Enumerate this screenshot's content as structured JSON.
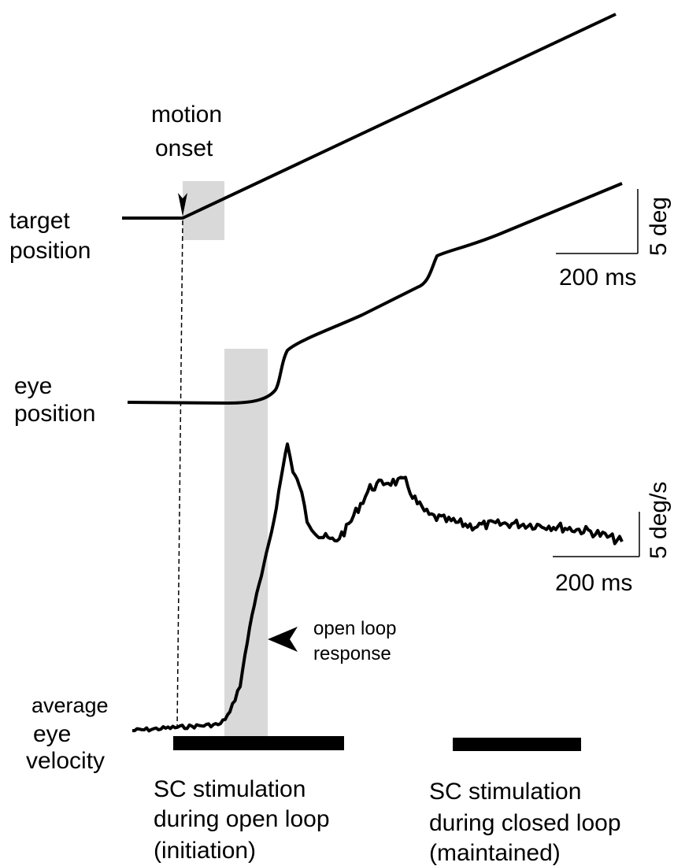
{
  "labels": {
    "motion_onset": [
      "motion",
      "onset"
    ],
    "target_position": [
      "target",
      "position"
    ],
    "eye_position": [
      "eye",
      "position"
    ],
    "target_scale_y": "5 deg",
    "target_scale_x": "200 ms",
    "velocity_scale_y": "5 deg/s",
    "velocity_scale_x": "200 ms",
    "open_loop": [
      "open loop",
      "response"
    ],
    "average_velocity": [
      "average",
      "eye",
      "velocity"
    ],
    "sc_open": [
      "SC stimulation",
      "during open loop",
      "(initiation)"
    ],
    "sc_closed": [
      "SC stimulation",
      "during closed loop",
      "(maintained)"
    ]
  }
}
